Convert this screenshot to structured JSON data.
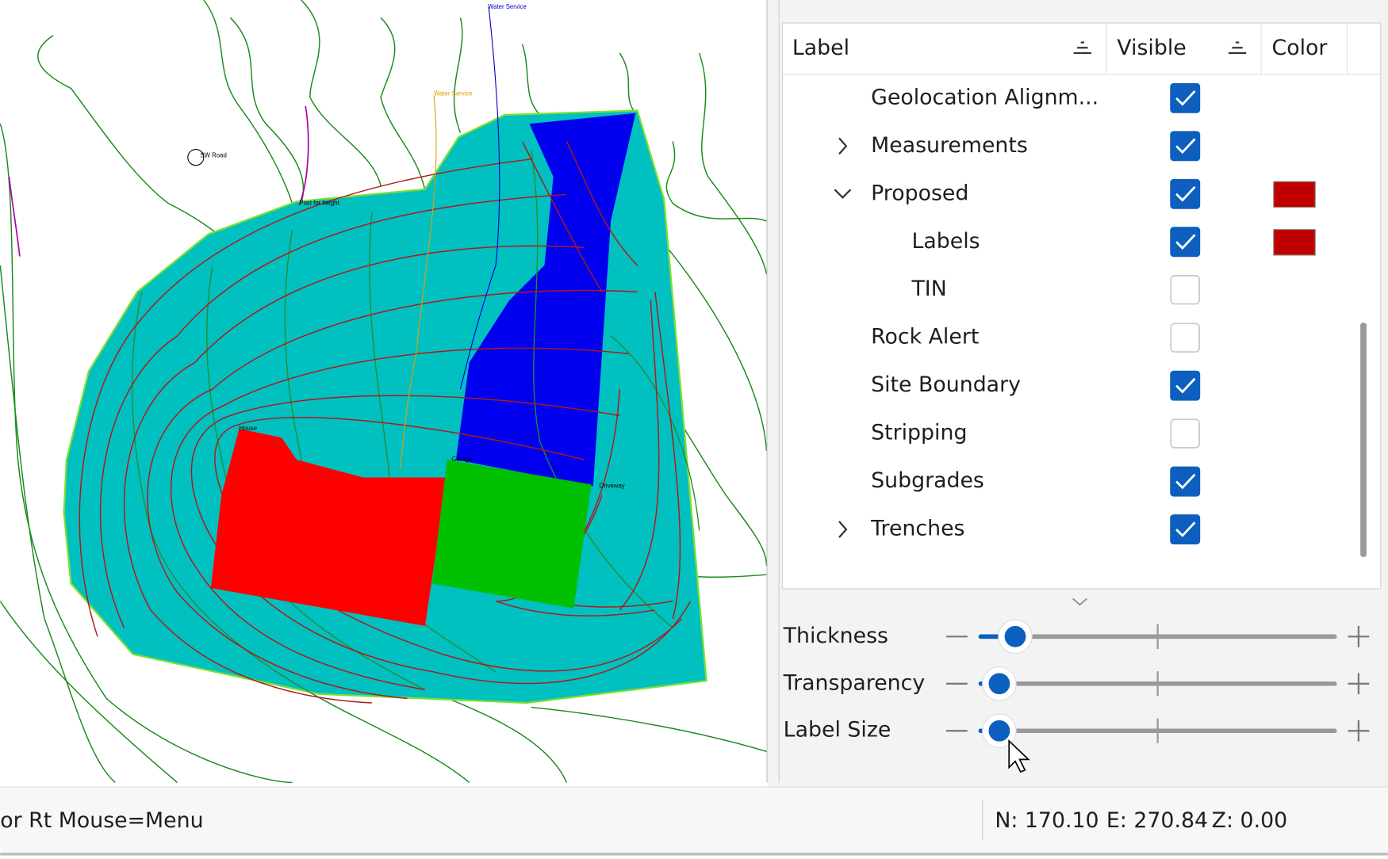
{
  "map": {
    "labels": [
      {
        "text": "Water Service",
        "color": "#0000cc"
      },
      {
        "text": "Water Service",
        "color": "#e0a000"
      },
      {
        "text": "SW Road",
        "color": "#000000"
      },
      {
        "text": "Post for height",
        "color": "#000000"
      },
      {
        "text": "House",
        "color": "#000000"
      },
      {
        "text": "Garage",
        "color": "#000000"
      },
      {
        "text": "Driveway",
        "color": "#000000"
      }
    ]
  },
  "layers": {
    "columns": [
      "Label",
      "Visible",
      "Color"
    ],
    "rows": [
      {
        "label": "Geolocation Alignm...",
        "visible": true,
        "level": 1
      },
      {
        "label": "Measurements",
        "visible": true,
        "level": 1,
        "expanded": false
      },
      {
        "label": "Proposed",
        "visible": true,
        "level": 1,
        "expanded": true,
        "color": "#c00000"
      },
      {
        "label": "Labels",
        "visible": true,
        "level": 2,
        "color": "#c00000"
      },
      {
        "label": "TIN",
        "visible": false,
        "level": 2
      },
      {
        "label": "Rock Alert",
        "visible": false,
        "level": 1
      },
      {
        "label": "Site Boundary",
        "visible": true,
        "level": 1
      },
      {
        "label": "Stripping",
        "visible": false,
        "level": 1
      },
      {
        "label": "Subgrades",
        "visible": true,
        "level": 1
      },
      {
        "label": "Trenches",
        "visible": true,
        "level": 1,
        "expanded": false
      }
    ]
  },
  "sliders": [
    {
      "label": "Thickness"
    },
    {
      "label": "Transparency"
    },
    {
      "label": "Label Size"
    }
  ],
  "status": {
    "hint": "or Rt Mouse=Menu",
    "north": "N: 170.10",
    "east": "E: 270.84",
    "elev": "Z: 0.00"
  }
}
